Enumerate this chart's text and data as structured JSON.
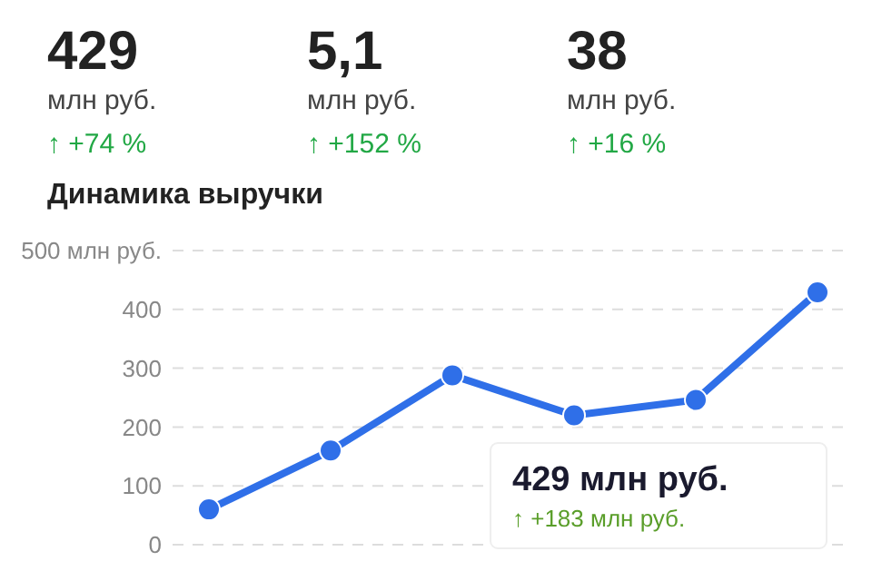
{
  "chart_data": [
    {
      "type": "other",
      "annotations": [
        "429",
        "млн руб.",
        "↑ +74 %",
        "5,1",
        "млн руб.",
        "↑ +152 %",
        "38",
        "млн руб.",
        "↑ +16 %"
      ]
    },
    {
      "type": "line",
      "title": "Динамика выручки",
      "categories": [
        null,
        null,
        null,
        null,
        null,
        null
      ],
      "series": [
        {
          "color": "#2f6fe8",
          "values": [
            60,
            160,
            288,
            220,
            246,
            429
          ]
        }
      ],
      "ylim": [
        0,
        500
      ],
      "yticks": [
        0,
        100,
        200,
        300,
        400,
        {
          "value": 500,
          "label": "500 млн руб."
        }
      ],
      "grid": "y",
      "marker": "circle",
      "line_style": "solid",
      "tick_labels": "y",
      "annotations": [
        "429 млн руб.",
        "↑ +183 млн руб."
      ]
    }
  ]
}
